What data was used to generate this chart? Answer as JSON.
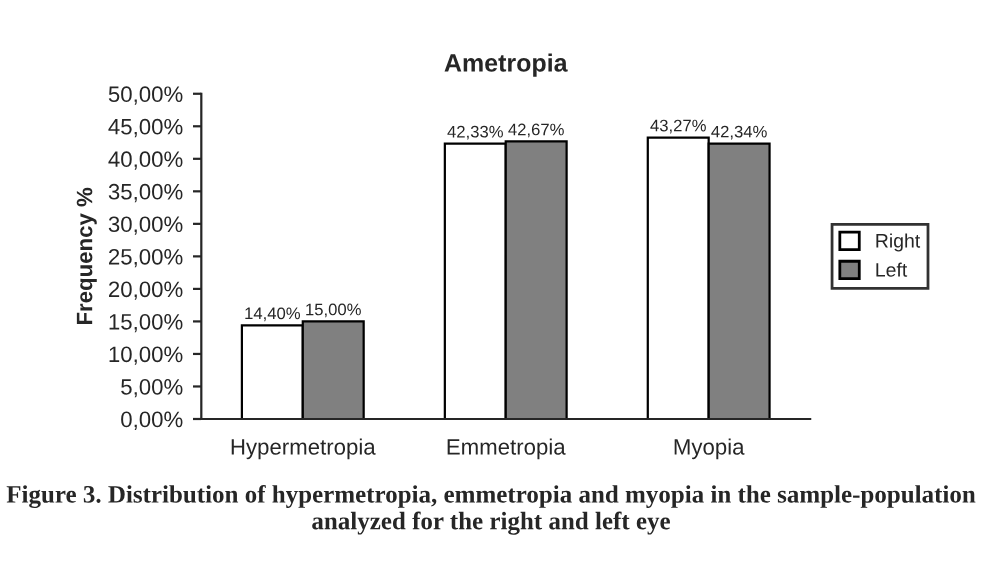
{
  "chart_data": {
    "type": "bar",
    "title": "Ametropia",
    "ylabel": "Frequency %",
    "categories": [
      "Hypermetropia",
      "Emmetropia",
      "Myopia"
    ],
    "series": [
      {
        "name": "Right",
        "color": "#ffffff",
        "values": [
          14.4,
          42.33,
          43.27
        ],
        "value_labels": [
          "14,40%",
          "42,33%",
          "43,27%"
        ]
      },
      {
        "name": "Left",
        "color": "#808080",
        "values": [
          15.0,
          42.67,
          42.34
        ],
        "value_labels": [
          "15,00%",
          "42,67%",
          "42,34%"
        ]
      }
    ],
    "ylim": [
      0,
      50
    ],
    "yticks": [
      {
        "value": 0,
        "label": "0,00%"
      },
      {
        "value": 5,
        "label": "5,00%"
      },
      {
        "value": 10,
        "label": "10,00%"
      },
      {
        "value": 15,
        "label": "15,00%"
      },
      {
        "value": 20,
        "label": "20,00%"
      },
      {
        "value": 25,
        "label": "25,00%"
      },
      {
        "value": 30,
        "label": "30,00%"
      },
      {
        "value": 35,
        "label": "35,00%"
      },
      {
        "value": 40,
        "label": "40,00%"
      },
      {
        "value": 45,
        "label": "45,00%"
      },
      {
        "value": 50,
        "label": "50,00%"
      }
    ],
    "legend": "right",
    "annotations": [
      "Figure 3. Distribution of hypermetropia, emmetropia and myopia in the sample-population analyzed for the right and left eye"
    ]
  }
}
